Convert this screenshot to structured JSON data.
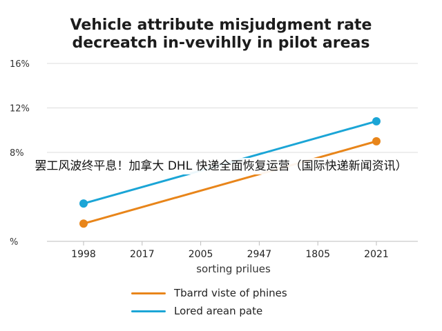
{
  "title_lines": [
    "Vehicle attribute misjudgment rate",
    "decreatch in-vevihlly in pilot areas"
  ],
  "banner_text": "罢工风波终平息！加拿大 DHL 快递全面恢复运营（国际快递新闻资讯）",
  "chart_data": {
    "type": "line",
    "title": "Vehicle attribute misjudgment rate decreatch in-vevihlly in pilot areas",
    "xlabel": "sorting prilues",
    "ylabel": "",
    "categories": [
      "1998",
      "2017",
      "2005",
      "2947",
      "1805",
      "2021"
    ],
    "y_ticks": [
      {
        "value": 0,
        "label": "%"
      },
      {
        "value": 8,
        "label": "8%"
      },
      {
        "value": 12,
        "label": "12%"
      },
      {
        "value": 16,
        "label": "16%"
      }
    ],
    "ylim": [
      0,
      16
    ],
    "grid": true,
    "legend_position": "bottom",
    "series": [
      {
        "name": "Tbarrd viste of phines",
        "color": "#e8851a",
        "points": [
          [
            0,
            1.6
          ],
          [
            5,
            9.0
          ]
        ]
      },
      {
        "name": "Lored arean pate",
        "color": "#1ba5d6",
        "points": [
          [
            0,
            3.4
          ],
          [
            5,
            10.8
          ]
        ]
      }
    ]
  }
}
